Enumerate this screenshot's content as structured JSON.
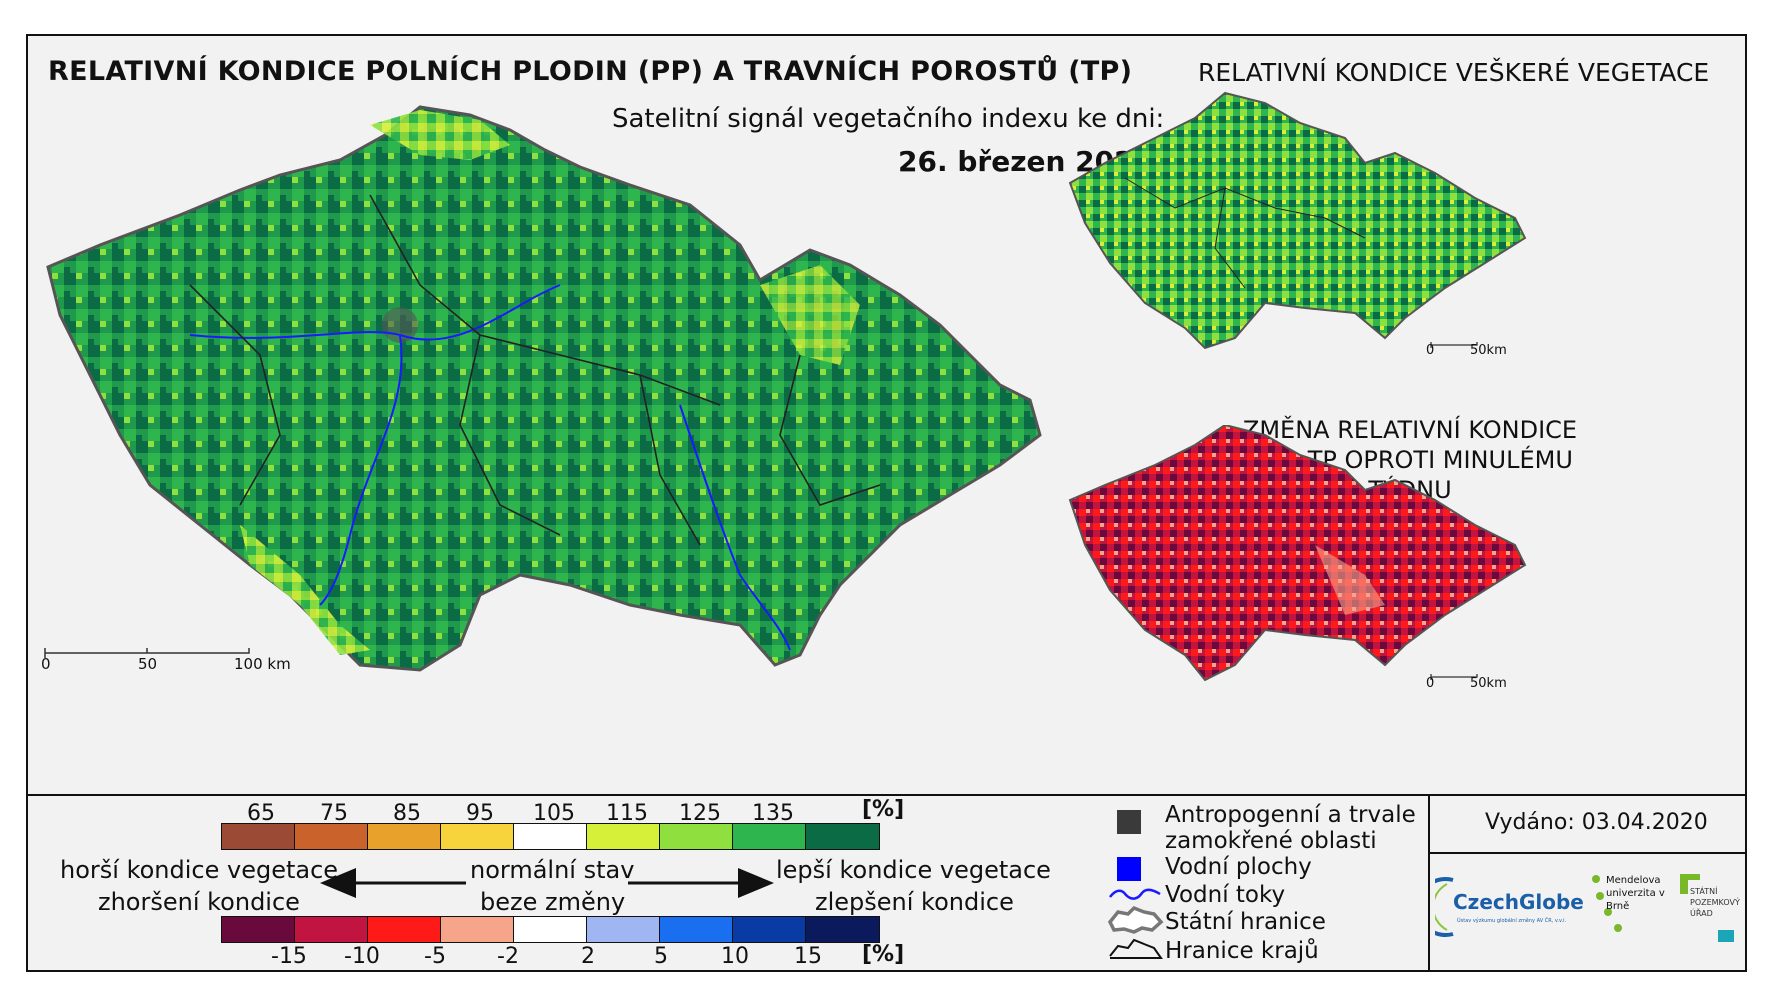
{
  "titles": {
    "main": "RELATIVNÍ KONDICE POLNÍCH PLODIN (PP) A TRAVNÍCH POROSTŮ (TP)",
    "right_top": "RELATIVNÍ KONDICE VEŠKERÉ VEGETACE",
    "subtitle": "Satelitní signál vegetačního indexu ke dni:",
    "date": "26. březen 2020",
    "change": "ZMĚNA RELATIVNÍ KONDICE PP A TP OPROTI MINULÉMU TÝDNU"
  },
  "scale_main": {
    "zero": "0",
    "mid": "50",
    "end": "100 km"
  },
  "scale_small": {
    "zero": "0",
    "end": "50km"
  },
  "legend_condition": {
    "ticks": [
      "65",
      "75",
      "85",
      "95",
      "105",
      "115",
      "125",
      "135"
    ],
    "unit": "[%]",
    "colors": [
      "#9a4a35",
      "#c9632b",
      "#e8a12a",
      "#f7d43c",
      "#ffffff",
      "#d6f03a",
      "#8fe03e",
      "#2fb54e",
      "#0b6b45"
    ]
  },
  "legend_change": {
    "ticks": [
      "-15",
      "-10",
      "-5",
      "-2",
      "2",
      "5",
      "10",
      "15"
    ],
    "unit": "[%]",
    "colors": [
      "#6a0a3c",
      "#c21440",
      "#ff1a1a",
      "#f7a58a",
      "#ffffff",
      "#9fb6f2",
      "#1a6ef0",
      "#0a3ba5",
      "#0a1a5c"
    ]
  },
  "legend_arrows": {
    "worse_1": "horší kondice vegetace",
    "worse_2": "zhoršení kondice",
    "normal_1": "normální stav",
    "normal_2": "beze změny",
    "better_1": "lepší kondice vegetace",
    "better_2": "zlepšení kondice"
  },
  "legend_symbols": [
    {
      "label": "Antropogenní a trvale zamokřené oblasti",
      "color": "#3a3a3a"
    },
    {
      "label": "Vodní plochy",
      "color": "#0000ff"
    },
    {
      "label": "Vodní toky",
      "color": "#1a1aff"
    },
    {
      "label": "Státní hranice",
      "color": "#444444"
    },
    {
      "label": "Hranice krajů",
      "color": "#111111"
    }
  ],
  "issued": "Vydáno: 03.04.2020",
  "logos": {
    "czechglobe": "CzechGlobe",
    "czechglobe_sub": "Ústav výzkumu globální změny AV ČR, v.v.i.",
    "mendel": "Mendelova univerzita v Brně",
    "spu": "STÁTNÍ POZEMKOVÝ ÚŘAD"
  }
}
